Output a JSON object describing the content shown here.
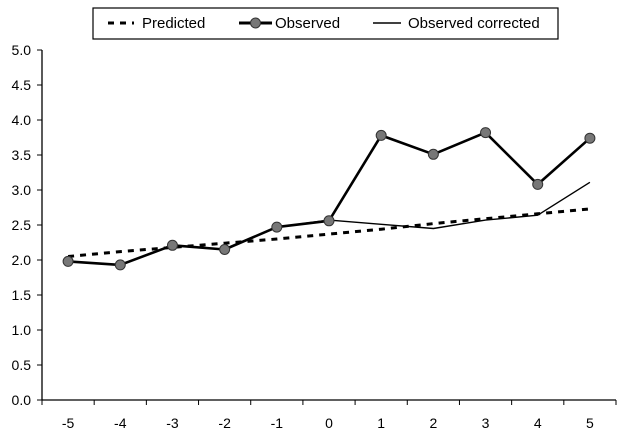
{
  "chart_data": {
    "type": "line",
    "x": [
      -5,
      -4,
      -3,
      -2,
      -1,
      0,
      1,
      2,
      3,
      4,
      5
    ],
    "ylim": [
      0,
      5
    ],
    "yticks": [
      "0.0",
      "0.5",
      "1.0",
      "1.5",
      "2.0",
      "2.5",
      "3.0",
      "3.5",
      "4.0",
      "4.5",
      "5.0"
    ],
    "xticks": [
      "-5",
      "-4",
      "-3",
      "-2",
      "-1",
      "0",
      "1",
      "2",
      "3",
      "4",
      "5"
    ],
    "legend_position": "top",
    "grid": false,
    "series": [
      {
        "name": "Predicted",
        "style": "dotted",
        "color": "#000000",
        "values": [
          2.05,
          2.12,
          2.18,
          2.24,
          2.3,
          2.37,
          2.44,
          2.52,
          2.59,
          2.66,
          2.73
        ]
      },
      {
        "name": "Observed",
        "style": "solid-markers",
        "color": "#000000",
        "marker_color": "#777777",
        "values": [
          1.98,
          1.93,
          2.21,
          2.15,
          2.47,
          2.56,
          3.78,
          3.51,
          3.82,
          3.08,
          3.74
        ]
      },
      {
        "name": "Observed corrected",
        "style": "thin",
        "color": "#000000",
        "values": [
          1.98,
          1.93,
          2.21,
          2.15,
          2.47,
          2.57,
          2.51,
          2.45,
          2.57,
          2.64,
          3.11
        ]
      }
    ]
  }
}
